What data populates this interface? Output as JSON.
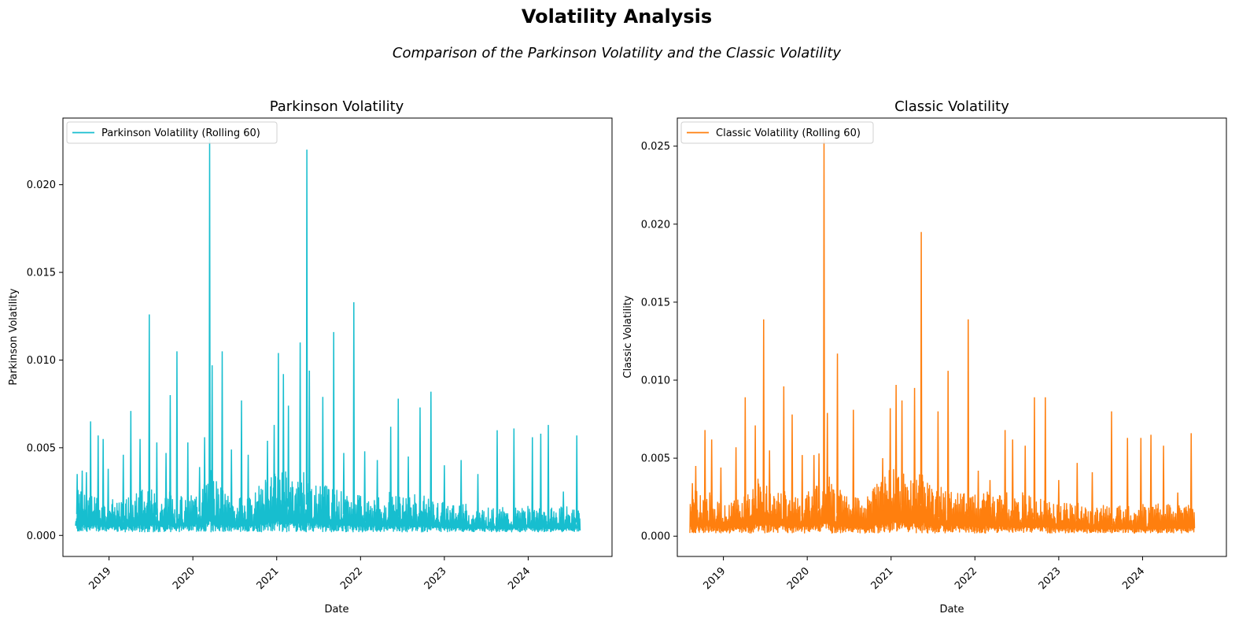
{
  "figure": {
    "title": "Volatility Analysis",
    "subtitle": "Comparison of the Parkinson Volatility and the Classic Volatility"
  },
  "chart_data": [
    {
      "type": "line",
      "title": "Parkinson Volatility",
      "xlabel": "Date",
      "ylabel": "Parkinson Volatility",
      "color": "#17becf",
      "legend": "Parkinson Volatility (Rolling 60)",
      "legend_position": "upper-left",
      "xlim": [
        2018.45,
        2025.0
      ],
      "ylim": [
        -0.0012,
        0.0238
      ],
      "x_ticks": [
        "2019",
        "2020",
        "2021",
        "2022",
        "2023",
        "2024"
      ],
      "y_ticks": [
        "0.000",
        "0.005",
        "0.010",
        "0.015",
        "0.020"
      ],
      "y_tick_values": [
        0.0,
        0.005,
        0.01,
        0.015,
        0.02
      ],
      "x_range": [
        2018.6,
        2024.62
      ],
      "x": [
        2018.6,
        2018.65,
        2018.7,
        2018.75,
        2018.8,
        2018.85,
        2018.9,
        2018.95,
        2019.0,
        2019.05,
        2019.1,
        2019.15,
        2019.2,
        2019.25,
        2019.3,
        2019.35,
        2019.4,
        2019.45,
        2019.5,
        2019.55,
        2019.6,
        2019.65,
        2019.7,
        2019.75,
        2019.8,
        2019.85,
        2019.9,
        2019.95,
        2020.0,
        2020.05,
        2020.1,
        2020.15,
        2020.2,
        2020.25,
        2020.3,
        2020.35,
        2020.4,
        2020.45,
        2020.5,
        2020.55,
        2020.6,
        2020.65,
        2020.7,
        2020.75,
        2020.8,
        2020.85,
        2020.9,
        2020.95,
        2021.0,
        2021.05,
        2021.1,
        2021.15,
        2021.2,
        2021.25,
        2021.3,
        2021.35,
        2021.4,
        2021.45,
        2021.5,
        2021.55,
        2021.6,
        2021.65,
        2021.7,
        2021.75,
        2021.8,
        2021.85,
        2021.9,
        2021.95,
        2022.0,
        2022.05,
        2022.1,
        2022.15,
        2022.2,
        2022.25,
        2022.3,
        2022.35,
        2022.4,
        2022.45,
        2022.5,
        2022.55,
        2022.6,
        2022.65,
        2022.7,
        2022.75,
        2022.8,
        2022.85,
        2022.9,
        2022.95,
        2023.0,
        2023.05,
        2023.1,
        2023.15,
        2023.2,
        2023.25,
        2023.3,
        2023.35,
        2023.4,
        2023.45,
        2023.5,
        2023.55,
        2023.6,
        2023.65,
        2023.7,
        2023.75,
        2023.8,
        2023.85,
        2023.9,
        2023.95,
        2024.0,
        2024.05,
        2024.1,
        2024.15,
        2024.2,
        2024.25,
        2024.3,
        2024.35,
        2024.4,
        2024.45,
        2024.5,
        2024.55,
        2024.6
      ],
      "base": [
        0.0011,
        0.0014,
        0.0012,
        0.001,
        0.0011,
        0.0012,
        0.0011,
        0.001,
        0.0011,
        0.001,
        0.0009,
        0.001,
        0.0011,
        0.001,
        0.0011,
        0.0013,
        0.0014,
        0.0012,
        0.0013,
        0.0012,
        0.0011,
        0.0012,
        0.0013,
        0.0011,
        0.001,
        0.0011,
        0.001,
        0.0011,
        0.0012,
        0.0013,
        0.0014,
        0.0016,
        0.0019,
        0.0017,
        0.0014,
        0.0013,
        0.0012,
        0.0011,
        0.001,
        0.0011,
        0.001,
        0.001,
        0.0011,
        0.0012,
        0.0014,
        0.0015,
        0.0016,
        0.0017,
        0.0018,
        0.0019,
        0.0018,
        0.0016,
        0.0015,
        0.0016,
        0.0017,
        0.0018,
        0.0016,
        0.0015,
        0.0014,
        0.0013,
        0.0014,
        0.0013,
        0.0012,
        0.0013,
        0.0012,
        0.0011,
        0.0012,
        0.0011,
        0.0011,
        0.001,
        0.0011,
        0.0012,
        0.0011,
        0.001,
        0.0011,
        0.0012,
        0.0011,
        0.0011,
        0.001,
        0.0011,
        0.0012,
        0.0011,
        0.001,
        0.0011,
        0.001,
        0.001,
        0.0009,
        0.001,
        0.0009,
        0.0008,
        0.0009,
        0.0008,
        0.0008,
        0.0009,
        0.0008,
        0.0007,
        0.0008,
        0.0007,
        0.0007,
        0.0008,
        0.0007,
        0.0007,
        0.0008,
        0.0007,
        0.0007,
        0.0008,
        0.0008,
        0.0007,
        0.0008,
        0.0007,
        0.0007,
        0.0008,
        0.0008,
        0.0007,
        0.0008,
        0.0007,
        0.0008,
        0.0008,
        0.0007,
        0.0008,
        0.0007
      ],
      "spikes": [
        {
          "x": 2018.62,
          "y": 0.0035
        },
        {
          "x": 2018.68,
          "y": 0.0037
        },
        {
          "x": 2018.73,
          "y": 0.0036
        },
        {
          "x": 2018.78,
          "y": 0.0065
        },
        {
          "x": 2018.87,
          "y": 0.0057
        },
        {
          "x": 2018.93,
          "y": 0.0055
        },
        {
          "x": 2018.99,
          "y": 0.0038
        },
        {
          "x": 2019.17,
          "y": 0.0046
        },
        {
          "x": 2019.26,
          "y": 0.0071
        },
        {
          "x": 2019.37,
          "y": 0.0055
        },
        {
          "x": 2019.48,
          "y": 0.0126
        },
        {
          "x": 2019.57,
          "y": 0.0053
        },
        {
          "x": 2019.68,
          "y": 0.0047
        },
        {
          "x": 2019.73,
          "y": 0.008
        },
        {
          "x": 2019.81,
          "y": 0.0105
        },
        {
          "x": 2019.94,
          "y": 0.0053
        },
        {
          "x": 2020.08,
          "y": 0.0039
        },
        {
          "x": 2020.14,
          "y": 0.0056
        },
        {
          "x": 2020.2,
          "y": 0.0228
        },
        {
          "x": 2020.23,
          "y": 0.0097
        },
        {
          "x": 2020.35,
          "y": 0.0105
        },
        {
          "x": 2020.46,
          "y": 0.0049
        },
        {
          "x": 2020.58,
          "y": 0.0077
        },
        {
          "x": 2020.66,
          "y": 0.0046
        },
        {
          "x": 2020.89,
          "y": 0.0054
        },
        {
          "x": 2020.97,
          "y": 0.0063
        },
        {
          "x": 2021.02,
          "y": 0.0104
        },
        {
          "x": 2021.08,
          "y": 0.0092
        },
        {
          "x": 2021.14,
          "y": 0.0074
        },
        {
          "x": 2021.28,
          "y": 0.011
        },
        {
          "x": 2021.36,
          "y": 0.022
        },
        {
          "x": 2021.39,
          "y": 0.0094
        },
        {
          "x": 2021.55,
          "y": 0.0079
        },
        {
          "x": 2021.68,
          "y": 0.0116
        },
        {
          "x": 2021.8,
          "y": 0.0047
        },
        {
          "x": 2021.92,
          "y": 0.0133
        },
        {
          "x": 2022.05,
          "y": 0.0048
        },
        {
          "x": 2022.2,
          "y": 0.0043
        },
        {
          "x": 2022.36,
          "y": 0.0062
        },
        {
          "x": 2022.45,
          "y": 0.0078
        },
        {
          "x": 2022.57,
          "y": 0.0045
        },
        {
          "x": 2022.71,
          "y": 0.0073
        },
        {
          "x": 2022.84,
          "y": 0.0082
        },
        {
          "x": 2023.0,
          "y": 0.004
        },
        {
          "x": 2023.2,
          "y": 0.0043
        },
        {
          "x": 2023.4,
          "y": 0.0035
        },
        {
          "x": 2023.63,
          "y": 0.006
        },
        {
          "x": 2023.83,
          "y": 0.0061
        },
        {
          "x": 2024.05,
          "y": 0.0056
        },
        {
          "x": 2024.15,
          "y": 0.0058
        },
        {
          "x": 2024.24,
          "y": 0.0063
        },
        {
          "x": 2024.42,
          "y": 0.0025
        },
        {
          "x": 2024.58,
          "y": 0.0057
        }
      ],
      "floor": 0.0002
    },
    {
      "type": "line",
      "title": "Classic Volatility",
      "xlabel": "Date",
      "ylabel": "Classic Volatility",
      "color": "#ff7f0e",
      "legend": "Classic Volatility (Rolling 60)",
      "legend_position": "upper-left",
      "xlim": [
        2018.45,
        2025.0
      ],
      "ylim": [
        -0.0013,
        0.0268
      ],
      "x_ticks": [
        "2019",
        "2020",
        "2021",
        "2022",
        "2023",
        "2024"
      ],
      "y_ticks": [
        "0.000",
        "0.005",
        "0.010",
        "0.015",
        "0.020",
        "0.025"
      ],
      "y_tick_values": [
        0.0,
        0.005,
        0.01,
        0.015,
        0.02,
        0.025
      ],
      "x_range": [
        2018.6,
        2024.62
      ],
      "x": [
        2018.6,
        2018.65,
        2018.7,
        2018.75,
        2018.8,
        2018.85,
        2018.9,
        2018.95,
        2019.0,
        2019.05,
        2019.1,
        2019.15,
        2019.2,
        2019.25,
        2019.3,
        2019.35,
        2019.4,
        2019.45,
        2019.5,
        2019.55,
        2019.6,
        2019.65,
        2019.7,
        2019.75,
        2019.8,
        2019.85,
        2019.9,
        2019.95,
        2020.0,
        2020.05,
        2020.1,
        2020.15,
        2020.2,
        2020.25,
        2020.3,
        2020.35,
        2020.4,
        2020.45,
        2020.5,
        2020.55,
        2020.6,
        2020.65,
        2020.7,
        2020.75,
        2020.8,
        2020.85,
        2020.9,
        2020.95,
        2021.0,
        2021.05,
        2021.1,
        2021.15,
        2021.2,
        2021.25,
        2021.3,
        2021.35,
        2021.4,
        2021.45,
        2021.5,
        2021.55,
        2021.6,
        2021.65,
        2021.7,
        2021.75,
        2021.8,
        2021.85,
        2021.9,
        2021.95,
        2022.0,
        2022.05,
        2022.1,
        2022.15,
        2022.2,
        2022.25,
        2022.3,
        2022.35,
        2022.4,
        2022.45,
        2022.5,
        2022.55,
        2022.6,
        2022.65,
        2022.7,
        2022.75,
        2022.8,
        2022.85,
        2022.9,
        2022.95,
        2023.0,
        2023.05,
        2023.1,
        2023.15,
        2023.2,
        2023.25,
        2023.3,
        2023.35,
        2023.4,
        2023.45,
        2023.5,
        2023.55,
        2023.6,
        2023.65,
        2023.7,
        2023.75,
        2023.8,
        2023.85,
        2023.9,
        2023.95,
        2024.0,
        2024.05,
        2024.1,
        2024.15,
        2024.2,
        2024.25,
        2024.3,
        2024.35,
        2024.4,
        2024.45,
        2024.5,
        2024.55,
        2024.6
      ],
      "base": [
        0.0012,
        0.0015,
        0.0013,
        0.0012,
        0.0014,
        0.0013,
        0.0012,
        0.0011,
        0.0012,
        0.0011,
        0.001,
        0.0012,
        0.0013,
        0.0012,
        0.0013,
        0.0015,
        0.0018,
        0.0016,
        0.0017,
        0.0016,
        0.0014,
        0.0013,
        0.0015,
        0.0013,
        0.0012,
        0.0013,
        0.0012,
        0.0013,
        0.0014,
        0.0015,
        0.0016,
        0.0018,
        0.0021,
        0.0019,
        0.0016,
        0.0015,
        0.0014,
        0.0013,
        0.0012,
        0.0013,
        0.0012,
        0.0012,
        0.0013,
        0.0014,
        0.0016,
        0.0018,
        0.0019,
        0.0021,
        0.0022,
        0.0023,
        0.0021,
        0.0019,
        0.0018,
        0.0019,
        0.002,
        0.0021,
        0.0019,
        0.0018,
        0.0016,
        0.0015,
        0.0016,
        0.0015,
        0.0014,
        0.0015,
        0.0014,
        0.0013,
        0.0014,
        0.0013,
        0.0013,
        0.0012,
        0.0013,
        0.0014,
        0.0013,
        0.0012,
        0.0013,
        0.0014,
        0.0013,
        0.0013,
        0.0012,
        0.0013,
        0.0014,
        0.0013,
        0.0012,
        0.0013,
        0.0012,
        0.0012,
        0.0011,
        0.0012,
        0.0011,
        0.001,
        0.0011,
        0.001,
        0.001,
        0.0011,
        0.001,
        0.0009,
        0.001,
        0.0009,
        0.0009,
        0.001,
        0.0009,
        0.0009,
        0.001,
        0.0009,
        0.0009,
        0.001,
        0.001,
        0.0009,
        0.001,
        0.0009,
        0.0009,
        0.001,
        0.001,
        0.0009,
        0.001,
        0.0009,
        0.001,
        0.001,
        0.0009,
        0.001,
        0.0009
      ],
      "spikes": [
        {
          "x": 2018.63,
          "y": 0.0034
        },
        {
          "x": 2018.67,
          "y": 0.0045
        },
        {
          "x": 2018.78,
          "y": 0.0068
        },
        {
          "x": 2018.86,
          "y": 0.0062
        },
        {
          "x": 2018.97,
          "y": 0.0044
        },
        {
          "x": 2019.15,
          "y": 0.0057
        },
        {
          "x": 2019.26,
          "y": 0.0089
        },
        {
          "x": 2019.38,
          "y": 0.0071
        },
        {
          "x": 2019.48,
          "y": 0.0139
        },
        {
          "x": 2019.55,
          "y": 0.0055
        },
        {
          "x": 2019.72,
          "y": 0.0096
        },
        {
          "x": 2019.82,
          "y": 0.0078
        },
        {
          "x": 2019.94,
          "y": 0.0052
        },
        {
          "x": 2020.08,
          "y": 0.0052
        },
        {
          "x": 2020.14,
          "y": 0.0053
        },
        {
          "x": 2020.2,
          "y": 0.0255
        },
        {
          "x": 2020.24,
          "y": 0.0079
        },
        {
          "x": 2020.36,
          "y": 0.0117
        },
        {
          "x": 2020.55,
          "y": 0.0081
        },
        {
          "x": 2020.9,
          "y": 0.005
        },
        {
          "x": 2020.99,
          "y": 0.0082
        },
        {
          "x": 2021.06,
          "y": 0.0097
        },
        {
          "x": 2021.13,
          "y": 0.0087
        },
        {
          "x": 2021.28,
          "y": 0.0095
        },
        {
          "x": 2021.36,
          "y": 0.0195
        },
        {
          "x": 2021.56,
          "y": 0.008
        },
        {
          "x": 2021.68,
          "y": 0.0106
        },
        {
          "x": 2021.92,
          "y": 0.0139
        },
        {
          "x": 2022.04,
          "y": 0.0042
        },
        {
          "x": 2022.18,
          "y": 0.0036
        },
        {
          "x": 2022.36,
          "y": 0.0068
        },
        {
          "x": 2022.45,
          "y": 0.0062
        },
        {
          "x": 2022.6,
          "y": 0.0058
        },
        {
          "x": 2022.71,
          "y": 0.0089
        },
        {
          "x": 2022.84,
          "y": 0.0089
        },
        {
          "x": 2023.0,
          "y": 0.0036
        },
        {
          "x": 2023.22,
          "y": 0.0047
        },
        {
          "x": 2023.4,
          "y": 0.0041
        },
        {
          "x": 2023.63,
          "y": 0.008
        },
        {
          "x": 2023.82,
          "y": 0.0063
        },
        {
          "x": 2023.98,
          "y": 0.0063
        },
        {
          "x": 2024.1,
          "y": 0.0065
        },
        {
          "x": 2024.25,
          "y": 0.0058
        },
        {
          "x": 2024.42,
          "y": 0.0028
        },
        {
          "x": 2024.58,
          "y": 0.0066
        }
      ],
      "floor": 0.0002
    }
  ]
}
